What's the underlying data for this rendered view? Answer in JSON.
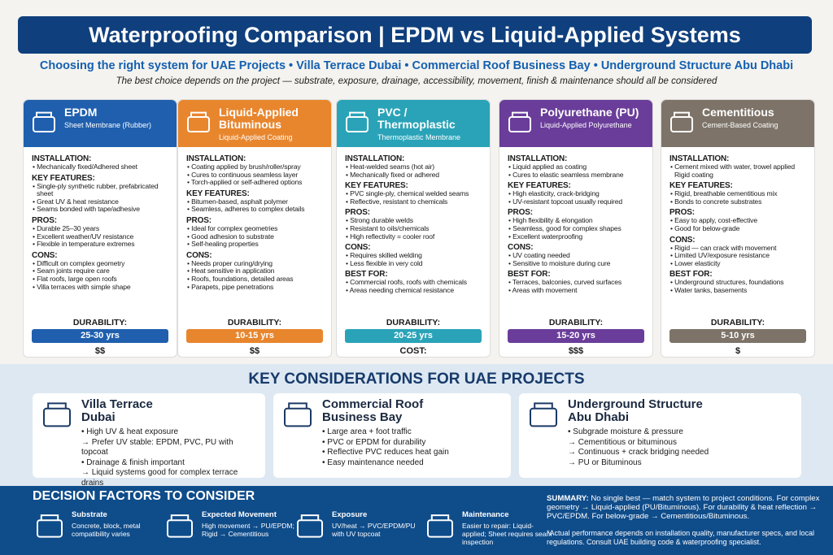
{
  "header": {
    "title": "Waterproofing Comparison | EPDM vs Liquid-Applied Systems",
    "subtitle": "Choosing the right system for UAE Projects • Villa Terrace Dubai • Commercial Roof Business Bay • Underground Structure Abu Dhabi",
    "note": "The best choice depends on the project — substrate, exposure, drainage, accessibility, movement, finish & maintenance should all be considered"
  },
  "cards": [
    {
      "title": "EPDM",
      "subtitle": "Sheet Membrane (Rubber)",
      "sections": [
        {
          "heading": "INSTALLATION:",
          "items": [
            "Mechanically fixed/Adhered sheet"
          ]
        },
        {
          "heading": "KEY FEATURES:",
          "items": [
            "Single-ply synthetic rubber, prefabricated sheet",
            "Great UV & heat resistance",
            "Seams bonded with tape/adhesive"
          ]
        },
        {
          "heading": "PROS:",
          "items": [
            "Durable 25–30 years",
            "Excellent weather/UV resistance",
            "Flexible in temperature extremes"
          ]
        },
        {
          "heading": "CONS:",
          "items": [
            "Difficult on complex geometry",
            "Seam joints require care",
            "Flat roofs, large open roofs",
            "Villa terraces with simple shape"
          ]
        }
      ],
      "durability_label": "DURABILITY:",
      "durability": "25-30 yrs",
      "cost": "$$"
    },
    {
      "title": "Liquid-Applied Bituminous",
      "subtitle": "Liquid-Applied Coating",
      "sections": [
        {
          "heading": "INSTALLATION:",
          "items": [
            "Coating applied by brush/roller/spray",
            "Cures to continuous seamless layer",
            "Torch-applied or self-adhered options"
          ]
        },
        {
          "heading": "KEY FEATURES:",
          "items": [
            "Bitumen-based, asphalt polymer",
            "Seamless, adheres to complex details"
          ]
        },
        {
          "heading": "PROS:",
          "items": [
            "Ideal for complex geometries",
            "Good adhesion to substrate",
            "Self-healing properties"
          ]
        },
        {
          "heading": "CONS:",
          "items": [
            "Needs proper curing/drying",
            "Heat sensitive in application",
            "Roofs, foundations, detailed areas",
            "Parapets, pipe penetrations"
          ]
        }
      ],
      "durability_label": "DURABILITY:",
      "durability": "10-15 yrs",
      "cost": "$$"
    },
    {
      "title": "PVC / Thermoplastic",
      "subtitle": "Thermoplastic Membrane",
      "sections": [
        {
          "heading": "INSTALLATION:",
          "items": [
            "Heat-welded seams (hot air)",
            "Mechanically fixed or adhered"
          ]
        },
        {
          "heading": "KEY FEATURES:",
          "items": [
            "PVC single-ply, chemical welded seams",
            "Reflective, resistant to chemicals"
          ]
        },
        {
          "heading": "PROS:",
          "items": [
            "Strong durable welds",
            "Resistant to oils/chemicals",
            "High reflectivity = cooler roof"
          ]
        },
        {
          "heading": "CONS:",
          "items": [
            "Requires skilled welding",
            "Less flexible in very cold"
          ]
        },
        {
          "heading": "BEST FOR:",
          "items": [
            "Commercial roofs, roofs with chemicals",
            "Areas needing chemical resistance"
          ]
        }
      ],
      "durability_label": "DURABILITY:",
      "durability": "20-25 yrs",
      "cost": "COST:"
    },
    {
      "title": "Polyurethane (PU)",
      "subtitle": "Liquid-Applied Polyurethane",
      "sections": [
        {
          "heading": "INSTALLATION:",
          "items": [
            "Liquid applied as coating",
            "Cures to elastic seamless membrane"
          ]
        },
        {
          "heading": "KEY FEATURES:",
          "items": [
            "High elasticity, crack-bridging",
            "UV-resistant topcoat usually required"
          ]
        },
        {
          "heading": "PROS:",
          "items": [
            "High flexibility & elongation",
            "Seamless, good for complex shapes",
            "Excellent waterproofing"
          ]
        },
        {
          "heading": "CONS:",
          "items": [
            "UV coating needed",
            "Sensitive to moisture during cure"
          ]
        },
        {
          "heading": "BEST FOR:",
          "items": [
            "Terraces, balconies, curved surfaces",
            "Areas with movement"
          ]
        }
      ],
      "durability_label": "DURABILITY:",
      "durability": "15-20 yrs",
      "cost": "$$$"
    },
    {
      "title": "Cementitious",
      "subtitle": "Cement-Based Coating",
      "sections": [
        {
          "heading": "INSTALLATION:",
          "items": [
            "Cement mixed with water, trowel applied    Rigid coating"
          ]
        },
        {
          "heading": "KEY FEATURES:",
          "items": [
            "Rigid, breathable cementitious mix",
            "Bonds to concrete substrates"
          ]
        },
        {
          "heading": "PROS:",
          "items": [
            "Easy to apply, cost-effective",
            "Good for below-grade"
          ]
        },
        {
          "heading": "CONS:",
          "items": [
            "Rigid — can crack with movement",
            "Limited UV/exposure resistance",
            "Lower elasticity"
          ]
        },
        {
          "heading": "BEST FOR:",
          "items": [
            "Underground structures, foundations",
            "Water tanks, basements"
          ]
        }
      ],
      "durability_label": "DURABILITY:",
      "durability": "5-10 yrs",
      "cost": "$"
    }
  ],
  "considerations": {
    "heading": "KEY CONSIDERATIONS FOR UAE PROJECTS",
    "items": [
      {
        "title": "Villa Terrace",
        "place": "Dubai",
        "points": [
          "• High UV & heat exposure",
          "→ Prefer UV stable: EPDM, PVC, PU with topcoat",
          "• Drainage & finish important",
          "→ Liquid systems good for complex terrace drains"
        ]
      },
      {
        "title": "Commercial Roof",
        "place": "Business Bay",
        "points": [
          "• Large area + foot traffic",
          "• PVC or EPDM for durability",
          "• Reflective PVC reduces heat gain",
          "• Easy maintenance needed"
        ]
      },
      {
        "title": "Underground Structure",
        "place": "Abu Dhabi",
        "points": [
          "• Subgrade moisture & pressure",
          "→ Cementitious or bituminous",
          "→ Continuous + crack bridging needed",
          "→ PU or Bituminous"
        ]
      }
    ]
  },
  "factors": {
    "heading": "DECISION FACTORS TO CONSIDER",
    "items": [
      {
        "title": "Substrate",
        "text": "Concrete, block, metal compatibility varies"
      },
      {
        "title": "Expected Movement",
        "text": "High movement → PU/EPDM; Rigid → Cementitious"
      },
      {
        "title": "Exposure",
        "text": "UV/heat → PVC/EPDM/PU with UV topcoat"
      },
      {
        "title": "Maintenance",
        "text": "Easier to repair: Liquid-applied; Sheet requires seam inspection"
      }
    ],
    "summary_lead": "SUMMARY:",
    "summary": "No single best — match system to project conditions. For complex geometry → Liquid-applied (PU/Bituminous). For durability & heat reflection → PVC/EPDM. For below-grade → Cementitious/Bituminous.",
    "footnote": "*Actual performance depends on installation quality, manufacturer specs, and local regulations. Consult UAE building code & waterproofing specialist."
  }
}
